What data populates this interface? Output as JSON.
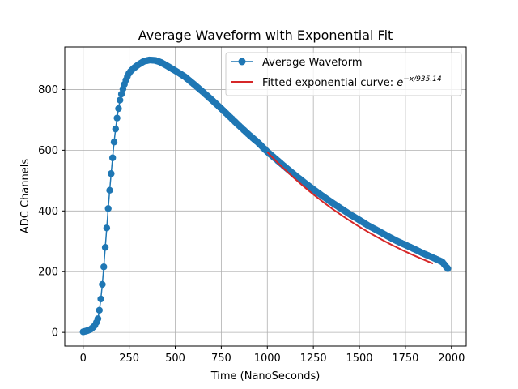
{
  "chart_data": {
    "type": "line",
    "title": "Average Waveform with Exponential Fit",
    "xlabel": "Time (NanoSeconds)",
    "ylabel": "ADC Channels",
    "xlim": [
      -100,
      2080
    ],
    "ylim": [
      -45,
      940
    ],
    "xticks": [
      0,
      250,
      500,
      750,
      1000,
      1250,
      1500,
      1750,
      2000
    ],
    "yticks": [
      0,
      200,
      400,
      600,
      800
    ],
    "grid": true,
    "legend_position": "top-right",
    "colors": {
      "waveform": "#1f77b4",
      "fit": "#d62728",
      "grid": "#b0b0b0"
    },
    "series": [
      {
        "name": "Average Waveform",
        "style": "line-with-markers",
        "sampling_step": 8,
        "anchors": {
          "x": [
            0,
            20,
            40,
            60,
            70,
            80,
            90,
            100,
            110,
            120,
            130,
            140,
            150,
            160,
            170,
            180,
            190,
            200,
            210,
            220,
            230,
            240,
            250,
            270,
            300,
            330,
            360,
            390,
            420,
            450,
            500,
            550,
            600,
            650,
            700,
            750,
            800,
            850,
            900,
            950,
            1000,
            1050,
            1100,
            1150,
            1200,
            1250,
            1300,
            1350,
            1400,
            1450,
            1500,
            1550,
            1600,
            1650,
            1700,
            1750,
            1800,
            1850,
            1900,
            1950,
            1980
          ],
          "y": [
            2,
            5,
            10,
            20,
            30,
            45,
            80,
            130,
            200,
            280,
            360,
            440,
            510,
            575,
            640,
            690,
            730,
            765,
            790,
            810,
            828,
            843,
            855,
            868,
            882,
            893,
            897,
            896,
            890,
            880,
            862,
            843,
            818,
            792,
            765,
            737,
            708,
            679,
            651,
            625,
            595,
            569,
            543,
            518,
            494,
            471,
            449,
            428,
            408,
            388,
            370,
            351,
            335,
            318,
            302,
            288,
            274,
            259,
            246,
            232,
            210
          ]
        }
      },
      {
        "name": "Fitted exponential curve: e^{-x/935.14}",
        "legend_label_prefix": "Fitted exponential curve: ",
        "legend_math_base": "e",
        "legend_math_exponent": "−x/935.14",
        "style": "line",
        "decay_constant": 935.14,
        "amplitude": 1730,
        "x_range": [
          1000,
          1900
        ]
      }
    ]
  }
}
